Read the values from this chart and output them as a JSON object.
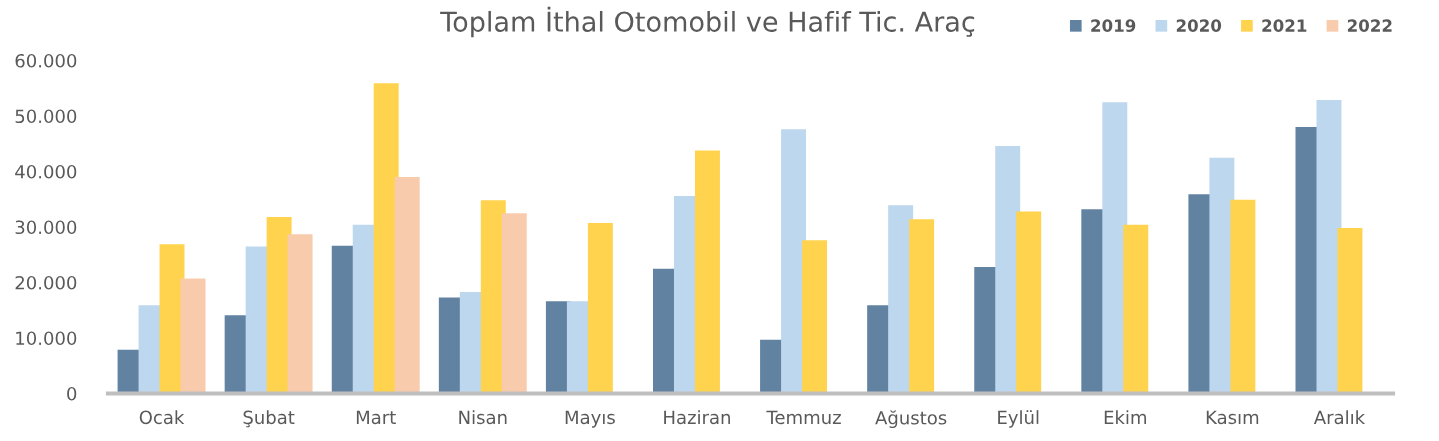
{
  "chart_data": {
    "type": "bar",
    "title": "Toplam İthal Otomobil ve Hafif Tic. Araç",
    "categories": [
      "Ocak",
      "Şubat",
      "Mart",
      "Nisan",
      "Mayıs",
      "Haziran",
      "Temmuz",
      "Ağustos",
      "Eylül",
      "Ekim",
      "Kasım",
      "Aralık"
    ],
    "series": [
      {
        "name": "2019",
        "color": "#6282a2",
        "values": [
          7900,
          14100,
          26600,
          17300,
          16600,
          22500,
          9700,
          15900,
          22800,
          33200,
          35900,
          48000
        ]
      },
      {
        "name": "2020",
        "color": "#bdd7ee",
        "values": [
          15900,
          26500,
          30400,
          18300,
          16600,
          35600,
          47600,
          33900,
          44600,
          52500,
          42500,
          52900
        ]
      },
      {
        "name": "2021",
        "color": "#ffd34d",
        "values": [
          26900,
          31800,
          55900,
          34800,
          30700,
          43800,
          27600,
          31400,
          32800,
          30400,
          34900,
          29800
        ]
      },
      {
        "name": "2022",
        "color": "#f8cbad",
        "values": [
          20700,
          28700,
          39000,
          32500,
          null,
          null,
          null,
          null,
          null,
          null,
          null,
          null
        ]
      }
    ],
    "ylim": [
      0,
      60000
    ],
    "yticks": [
      0,
      {
        "value": 10000,
        "label": "10.000"
      },
      {
        "value": 20000,
        "label": "20.000"
      },
      {
        "value": 30000,
        "label": "30.000"
      },
      {
        "value": 40000,
        "label": "40.000"
      },
      {
        "value": 50000,
        "label": "50.000"
      },
      {
        "value": 60000,
        "label": "60.000"
      }
    ],
    "grid": false,
    "legend": "top right"
  }
}
